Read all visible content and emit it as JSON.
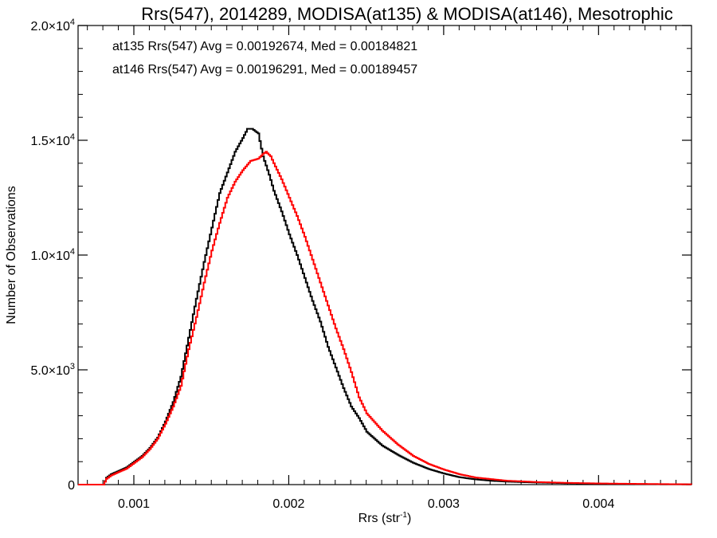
{
  "chart_data": {
    "type": "line",
    "title": "Rrs(547), 2014289, MODISA(at135) & MODISA(at146), Mesotrophic",
    "xlabel_base": "Rrs (str",
    "xlabel_sup": "-1",
    "xlabel_close": ")",
    "ylabel": "Number of Observations",
    "xlim": [
      0.00064,
      0.0046
    ],
    "ylim": [
      0,
      20000
    ],
    "grid": false,
    "x_ticks": [
      {
        "value": 0.001,
        "label": "0.001"
      },
      {
        "value": 0.002,
        "label": "0.002"
      },
      {
        "value": 0.003,
        "label": "0.003"
      },
      {
        "value": 0.004,
        "label": "0.004"
      }
    ],
    "y_ticks": [
      {
        "value": 0,
        "mant": "0",
        "exp": ""
      },
      {
        "value": 5000,
        "mant": "5.0×10",
        "exp": "3"
      },
      {
        "value": 10000,
        "mant": "1.0×10",
        "exp": "4"
      },
      {
        "value": 15000,
        "mant": "1.5×10",
        "exp": "4"
      },
      {
        "value": 20000,
        "mant": "2.0×10",
        "exp": "4"
      }
    ],
    "annotations": [
      {
        "text": "at135 Rrs(547) Avg = 0.00192674, Med = 0.00184821",
        "color": "#000000"
      },
      {
        "text": "at146 Rrs(547) Avg = 0.00196291, Med = 0.00189457",
        "color": "#ff0000"
      }
    ],
    "series": [
      {
        "color": "#000000",
        "x": [
          0.00064,
          0.0008,
          0.00082,
          0.00085,
          0.0009,
          0.00095,
          0.001,
          0.00105,
          0.0011,
          0.00115,
          0.0012,
          0.00125,
          0.0013,
          0.00135,
          0.0014,
          0.00145,
          0.0015,
          0.00155,
          0.0016,
          0.00165,
          0.0017,
          0.00173,
          0.00176,
          0.0018,
          0.00183,
          0.00187,
          0.0019,
          0.00195,
          0.002,
          0.00205,
          0.0021,
          0.00215,
          0.0022,
          0.00225,
          0.0023,
          0.00235,
          0.0024,
          0.00245,
          0.0025,
          0.0026,
          0.0027,
          0.0028,
          0.0029,
          0.003,
          0.0031,
          0.0032,
          0.0033,
          0.0034,
          0.0036,
          0.0038,
          0.004,
          0.0042,
          0.0044,
          0.0046
        ],
        "y": [
          0,
          0,
          300,
          450,
          600,
          750,
          1000,
          1250,
          1600,
          2050,
          2750,
          3600,
          4700,
          6400,
          8100,
          9700,
          11200,
          12700,
          13600,
          14500,
          15100,
          15500,
          15500,
          15300,
          14300,
          13500,
          12800,
          11900,
          10900,
          10000,
          9000,
          8000,
          7100,
          6000,
          5100,
          4200,
          3400,
          2900,
          2300,
          1700,
          1300,
          950,
          680,
          480,
          320,
          230,
          170,
          130,
          90,
          60,
          40,
          25,
          15,
          10
        ]
      },
      {
        "color": "#ff0000",
        "x": [
          0.00064,
          0.0008,
          0.00082,
          0.00085,
          0.0009,
          0.00095,
          0.001,
          0.00105,
          0.0011,
          0.00115,
          0.0012,
          0.00125,
          0.0013,
          0.00135,
          0.0014,
          0.00145,
          0.0015,
          0.00155,
          0.0016,
          0.00165,
          0.0017,
          0.00175,
          0.0018,
          0.00183,
          0.00185,
          0.00188,
          0.0019,
          0.00195,
          0.002,
          0.00205,
          0.0021,
          0.00215,
          0.0022,
          0.00225,
          0.0023,
          0.00235,
          0.0024,
          0.00245,
          0.0025,
          0.0026,
          0.0027,
          0.0028,
          0.0029,
          0.003,
          0.0031,
          0.0032,
          0.0033,
          0.0034,
          0.0036,
          0.0038,
          0.004,
          0.0042,
          0.0044,
          0.0046
        ],
        "y": [
          0,
          0,
          250,
          400,
          550,
          700,
          950,
          1200,
          1550,
          2000,
          2650,
          3400,
          4300,
          5900,
          7300,
          8800,
          10200,
          11400,
          12500,
          13200,
          13700,
          14100,
          14200,
          14400,
          14500,
          14300,
          14000,
          13300,
          12500,
          11700,
          10800,
          9800,
          8800,
          7800,
          6800,
          5900,
          4900,
          3800,
          3100,
          2350,
          1750,
          1250,
          900,
          650,
          450,
          310,
          240,
          170,
          110,
          75,
          50,
          35,
          22,
          12
        ]
      }
    ]
  }
}
